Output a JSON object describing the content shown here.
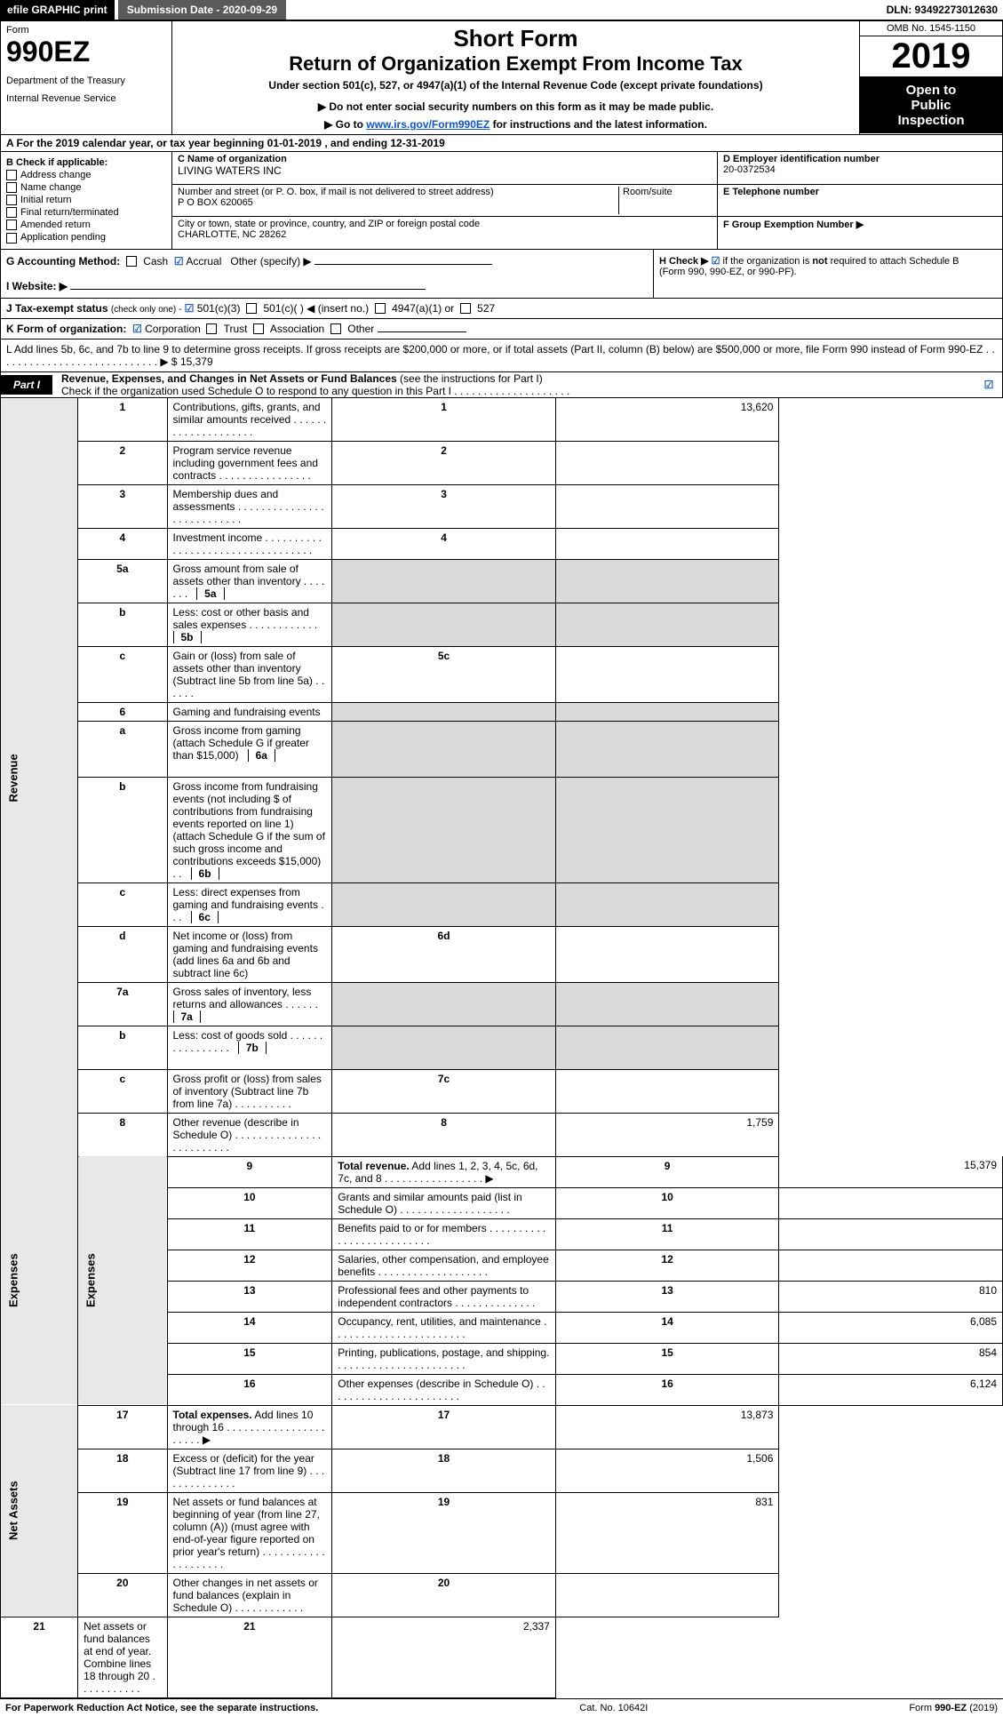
{
  "topbar": {
    "efile": "efile GRAPHIC print",
    "submission": "Submission Date - 2020-09-29",
    "dln": "DLN: 93492273012630"
  },
  "header": {
    "form_label": "Form",
    "form_number": "990EZ",
    "dept1": "Department of the Treasury",
    "dept2": "Internal Revenue Service",
    "short_form": "Short Form",
    "return_title": "Return of Organization Exempt From Income Tax",
    "under_section": "Under section 501(c), 527, or 4947(a)(1) of the Internal Revenue Code (except private foundations)",
    "donot": "▶ Do not enter social security numbers on this form as it may be made public.",
    "goto_prefix": "▶ Go to ",
    "goto_link": "www.irs.gov/Form990EZ",
    "goto_suffix": " for instructions and the latest information.",
    "omb": "OMB No. 1545-1150",
    "year": "2019",
    "open1": "Open to",
    "open2": "Public",
    "open3": "Inspection"
  },
  "rowA": "A  For the 2019 calendar year, or tax year beginning 01-01-2019 , and ending 12-31-2019",
  "colB": {
    "title": "B  Check if applicable:",
    "items": [
      "Address change",
      "Name change",
      "Initial return",
      "Final return/terminated",
      "Amended return",
      "Application pending"
    ]
  },
  "colC": {
    "c_label": "C Name of organization",
    "org_name": "LIVING WATERS INC",
    "street_label": "Number and street (or P. O. box, if mail is not delivered to street address)",
    "room_label": "Room/suite",
    "street": "P O BOX 620065",
    "city_label": "City or town, state or province, country, and ZIP or foreign postal code",
    "city": "CHARLOTTE, NC  28262"
  },
  "colRight": {
    "d_label": "D Employer identification number",
    "d_val": "20-0372534",
    "e_label": "E Telephone number",
    "e_val": "",
    "f_label": "F Group Exemption Number  ▶",
    "f_val": ""
  },
  "rowG": {
    "label": "G Accounting Method:",
    "cash": "Cash",
    "accrual": "Accrual",
    "other": "Other (specify) ▶"
  },
  "rowH": {
    "text1": "H  Check ▶ ",
    "text2": " if the organization is ",
    "not": "not",
    "text3": " required to attach Schedule B",
    "text4": "(Form 990, 990-EZ, or 990-PF)."
  },
  "rowI": {
    "label": "I Website: ▶"
  },
  "rowJ": {
    "label": "J Tax-exempt status",
    "hint": "(check only one) -",
    "opt1": "501(c)(3)",
    "opt2": "501(c)(  ) ◀ (insert no.)",
    "opt3": "4947(a)(1) or",
    "opt4": "527"
  },
  "rowK": {
    "label": "K Form of organization:",
    "opts": [
      "Corporation",
      "Trust",
      "Association",
      "Other"
    ]
  },
  "rowL": {
    "text": "L Add lines 5b, 6c, and 7b to line 9 to determine gross receipts. If gross receipts are $200,000 or more, or if total assets (Part II, column (B) below) are $500,000 or more, file Form 990 instead of Form 990-EZ . . . . . . . . . . . . . . . . . . . . . . . . . . . .  ▶ $ 15,379"
  },
  "partI": {
    "tab": "Part I",
    "title": "Revenue, Expenses, and Changes in Net Assets or Fund Balances ",
    "hint": "(see the instructions for Part I)",
    "check_line": "Check if the organization used Schedule O to respond to any question in this Part I . . . . . . . . . . . . . . . . . . . ."
  },
  "sections": {
    "revenue": "Revenue",
    "expenses": "Expenses",
    "netassets": "Net Assets"
  },
  "lines": [
    {
      "n": "1",
      "desc": "Contributions, gifts, grants, and similar amounts received . . . . . . . . . . . . . . . . . . . .",
      "ln": "1",
      "amt": "13,620"
    },
    {
      "n": "2",
      "desc": "Program service revenue including government fees and contracts . . . . . . . . . . . . . . . .",
      "ln": "2",
      "amt": ""
    },
    {
      "n": "3",
      "desc": "Membership dues and assessments . . . . . . . . . . . . . . . . . . . . . . . . . . .",
      "ln": "3",
      "amt": ""
    },
    {
      "n": "4",
      "desc": "Investment income . . . . . . . . . . . . . . . . . . . . . . . . . . . . . . . . . .",
      "ln": "4",
      "amt": ""
    },
    {
      "n": "5a",
      "desc": "Gross amount from sale of assets other than inventory . . . . . . .",
      "box": "5a"
    },
    {
      "n": "b",
      "desc": "Less: cost or other basis and sales expenses . . . . . . . . . . . .",
      "box": "5b"
    },
    {
      "n": "c",
      "desc": "Gain or (loss) from sale of assets other than inventory (Subtract line 5b from line 5a) . . . . . .",
      "ln": "5c",
      "amt": ""
    },
    {
      "n": "6",
      "desc": "Gaming and fundraising events"
    },
    {
      "n": "a",
      "desc": "Gross income from gaming (attach Schedule G if greater than $15,000)",
      "box": "6a"
    },
    {
      "n": "b",
      "desc": "Gross income from fundraising events (not including $                    of contributions from fundraising events reported on line 1) (attach Schedule G if the sum of such gross income and contributions exceeds $15,000)    . .",
      "box": "6b"
    },
    {
      "n": "c",
      "desc": "Less: direct expenses from gaming and fundraising events     . . .",
      "box": "6c"
    },
    {
      "n": "d",
      "desc": "Net income or (loss) from gaming and fundraising events (add lines 6a and 6b and subtract line 6c)",
      "ln": "6d",
      "amt": ""
    },
    {
      "n": "7a",
      "desc": "Gross sales of inventory, less returns and allowances . . . . . .",
      "box": "7a"
    },
    {
      "n": "b",
      "desc": "Less: cost of goods sold        . . . . . . . . . . . . . . . .",
      "box": "7b"
    },
    {
      "n": "c",
      "desc": "Gross profit or (loss) from sales of inventory (Subtract line 7b from line 7a) . . . . . . . . . .",
      "ln": "7c",
      "amt": ""
    },
    {
      "n": "8",
      "desc": "Other revenue (describe in Schedule O) . . . . . . . . . . . . . . . . . . . . . . . . .",
      "ln": "8",
      "amt": "1,759"
    },
    {
      "n": "9",
      "desc": "Total revenue. Add lines 1, 2, 3, 4, 5c, 6d, 7c, and 8  . . . . . . . . . . . . . . . . .  ▶",
      "ln": "9",
      "amt": "15,379",
      "bold": true
    },
    {
      "n": "10",
      "desc": "Grants and similar amounts paid (list in Schedule O) . . . . . . . . . . . . . . . . . . .",
      "ln": "10",
      "amt": ""
    },
    {
      "n": "11",
      "desc": "Benefits paid to or for members     . . . . . . . . . . . . . . . . . . . . . . . . . .",
      "ln": "11",
      "amt": ""
    },
    {
      "n": "12",
      "desc": "Salaries, other compensation, and employee benefits . . . . . . . . . . . . . . . . . . .",
      "ln": "12",
      "amt": ""
    },
    {
      "n": "13",
      "desc": "Professional fees and other payments to independent contractors . . . . . . . . . . . . . .",
      "ln": "13",
      "amt": "810"
    },
    {
      "n": "14",
      "desc": "Occupancy, rent, utilities, and maintenance . . . . . . . . . . . . . . . . . . . . . . .",
      "ln": "14",
      "amt": "6,085"
    },
    {
      "n": "15",
      "desc": "Printing, publications, postage, and shipping. . . . . . . . . . . . . . . . . . . . . . .",
      "ln": "15",
      "amt": "854"
    },
    {
      "n": "16",
      "desc": "Other expenses (describe in Schedule O)     . . . . . . . . . . . . . . . . . . . . . . .",
      "ln": "16",
      "amt": "6,124"
    },
    {
      "n": "17",
      "desc": "Total expenses. Add lines 10 through 16    . . . . . . . . . . . . . . . . . . . . . .  ▶",
      "ln": "17",
      "amt": "13,873",
      "bold": true
    },
    {
      "n": "18",
      "desc": "Excess or (deficit) for the year (Subtract line 17 from line 9)       . . . . . . . . . . . . . .",
      "ln": "18",
      "amt": "1,506"
    },
    {
      "n": "19",
      "desc": "Net assets or fund balances at beginning of year (from line 27, column (A)) (must agree with end-of-year figure reported on prior year's return) . . . . . . . . . . . . . . . . . . . .",
      "ln": "19",
      "amt": "831"
    },
    {
      "n": "20",
      "desc": "Other changes in net assets or fund balances (explain in Schedule O) . . . . . . . . . . . .",
      "ln": "20",
      "amt": ""
    },
    {
      "n": "21",
      "desc": "Net assets or fund balances at end of year. Combine lines 18 through 20 . . . . . . . . . . .",
      "ln": "21",
      "amt": "2,337"
    }
  ],
  "footer": {
    "left": "For Paperwork Reduction Act Notice, see the separate instructions.",
    "mid": "Cat. No. 10642I",
    "right": "Form 990-EZ (2019)"
  },
  "colors": {
    "black": "#000000",
    "white": "#ffffff",
    "darkgray": "#5a5a5a",
    "shade": "#d9d9d9",
    "link": "#1155cc",
    "check": "#2060c0"
  }
}
